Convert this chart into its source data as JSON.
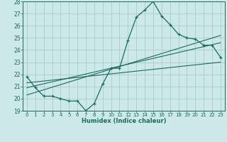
{
  "xlabel": "Humidex (Indice chaleur)",
  "bg_color": "#cce8e8",
  "grid_color": "#aacccc",
  "line_color": "#1a6b60",
  "xlim": [
    -0.5,
    23.5
  ],
  "ylim": [
    19,
    28
  ],
  "xticks": [
    0,
    1,
    2,
    3,
    4,
    5,
    6,
    7,
    8,
    9,
    10,
    11,
    12,
    13,
    14,
    15,
    16,
    17,
    18,
    19,
    20,
    21,
    22,
    23
  ],
  "yticks": [
    19,
    20,
    21,
    22,
    23,
    24,
    25,
    26,
    27,
    28
  ],
  "series1_x": [
    0,
    1,
    2,
    3,
    4,
    5,
    6,
    7,
    8,
    9,
    10,
    11,
    12,
    13,
    14,
    15,
    16,
    17,
    18,
    19,
    20,
    21,
    22,
    23
  ],
  "series1_y": [
    21.8,
    20.9,
    20.2,
    20.2,
    20.0,
    19.8,
    19.8,
    19.0,
    19.6,
    21.2,
    22.5,
    22.5,
    24.8,
    26.7,
    27.3,
    28.0,
    26.8,
    26.1,
    25.3,
    25.0,
    24.9,
    24.4,
    24.4,
    23.4
  ],
  "trend1_x": [
    0,
    23
  ],
  "trend1_y": [
    20.9,
    24.6
  ],
  "trend2_x": [
    0,
    23
  ],
  "trend2_y": [
    21.3,
    23.0
  ],
  "trend3_x": [
    0,
    23
  ],
  "trend3_y": [
    20.3,
    25.2
  ]
}
